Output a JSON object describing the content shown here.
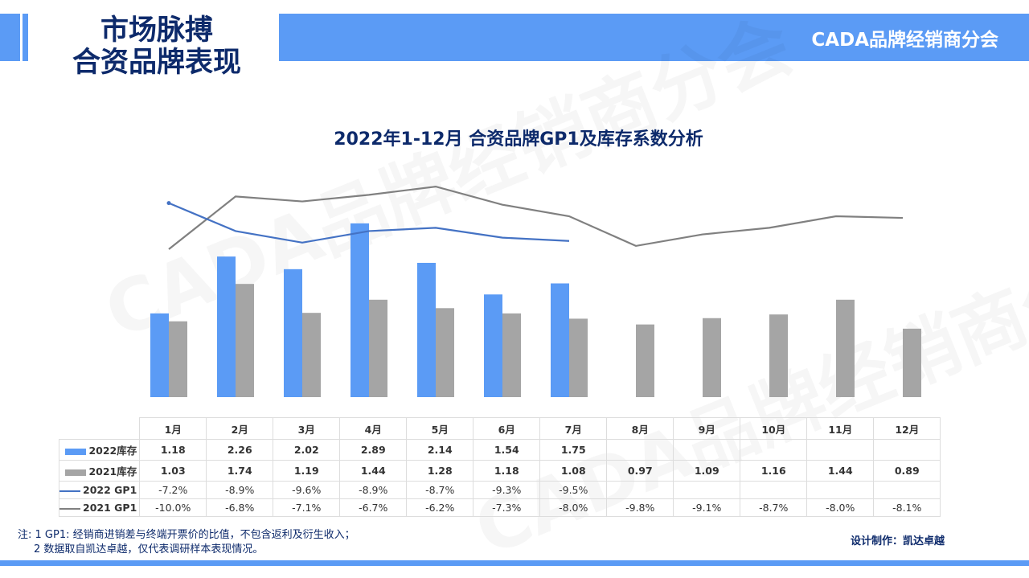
{
  "header": {
    "title_line1": "市场脉搏",
    "title_line2": "合资品牌表现",
    "org": "CADA品牌经销商分会"
  },
  "watermark": "CADA品牌经销商分会",
  "colors": {
    "accent": "#5b9bf5",
    "navy": "#0d2a6b",
    "bar2021": "#a5a5a5",
    "line2022": "#4472c4",
    "line2021": "#808080"
  },
  "chart_data": {
    "type": "bar+line",
    "title": "2022年1-12月 合资品牌GP1及库存系数分析",
    "categories": [
      "1月",
      "2月",
      "3月",
      "4月",
      "5月",
      "6月",
      "7月",
      "8月",
      "9月",
      "10月",
      "11月",
      "12月"
    ],
    "series": [
      {
        "name": "2022库存",
        "type": "bar",
        "values": [
          "1.18",
          "2.26",
          "2.02",
          "2.89",
          "2.14",
          "1.54",
          "1.75",
          null,
          null,
          null,
          null,
          null
        ]
      },
      {
        "name": "2021库存",
        "type": "bar",
        "values": [
          "1.03",
          "1.74",
          "1.19",
          "1.44",
          "1.28",
          "1.18",
          "1.08",
          "0.97",
          "1.09",
          "1.16",
          "1.44",
          "0.89"
        ]
      },
      {
        "name": "2022 GP1",
        "type": "line",
        "values": [
          "-7.2%",
          "-8.9%",
          "-9.6%",
          "-8.9%",
          "-8.7%",
          "-9.3%",
          "-9.5%",
          null,
          null,
          null,
          null,
          null
        ]
      },
      {
        "name": "2021 GP1",
        "type": "line",
        "values": [
          "-10.0%",
          "-6.8%",
          "-7.1%",
          "-6.7%",
          "-6.2%",
          "-7.3%",
          "-8.0%",
          "-9.8%",
          "-9.1%",
          "-8.7%",
          "-8.0%",
          "-8.1%"
        ]
      }
    ],
    "legend": "data-table",
    "grid": false
  },
  "notes": {
    "line1": "注: 1 GP1: 经销商进销差与终端开票价的比值，不包含返利及衍生收入；",
    "line2": "2 数据取自凯达卓越，仅代表调研样本表现情况。"
  },
  "credit": "设计制作：凯达卓越"
}
